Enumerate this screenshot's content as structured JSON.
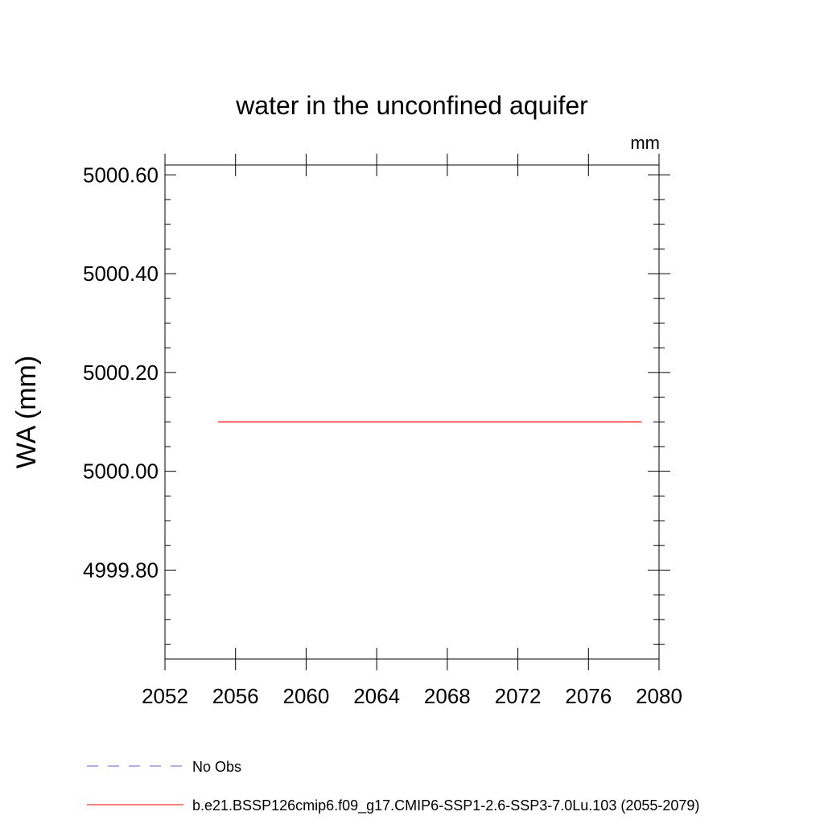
{
  "chart_data": {
    "type": "line",
    "title": "water in the unconfined aquifer",
    "units": "mm",
    "xlabel": "",
    "ylabel": "WA  (mm)",
    "xlim": [
      2052,
      2080
    ],
    "ylim": [
      4999.62,
      5000.62
    ],
    "x_ticks": [
      2052,
      2056,
      2060,
      2064,
      2068,
      2072,
      2076,
      2080
    ],
    "x_tick_labels": [
      "2052",
      "2056",
      "2060",
      "2064",
      "2068",
      "2072",
      "2076",
      "2080"
    ],
    "y_ticks": [
      4999.8,
      5000.0,
      5000.2,
      5000.4,
      5000.6
    ],
    "y_tick_labels": [
      "4999.80",
      "5000.00",
      "5000.20",
      "5000.40",
      "5000.60"
    ],
    "grid": false,
    "legend_position": "bottom",
    "series": [
      {
        "name": "No Obs",
        "color": "#6a5acd",
        "dash": "dashed",
        "x": [],
        "y": []
      },
      {
        "name": "b.e21.BSSP126cmip6.f09_g17.CMIP6-SSP1-2.6-SSP3-7.0Lu.103 (2055-2079)",
        "color": "#ff0000",
        "dash": "solid",
        "x": [
          2055,
          2079
        ],
        "y": [
          5000.1,
          5000.1
        ]
      }
    ]
  }
}
